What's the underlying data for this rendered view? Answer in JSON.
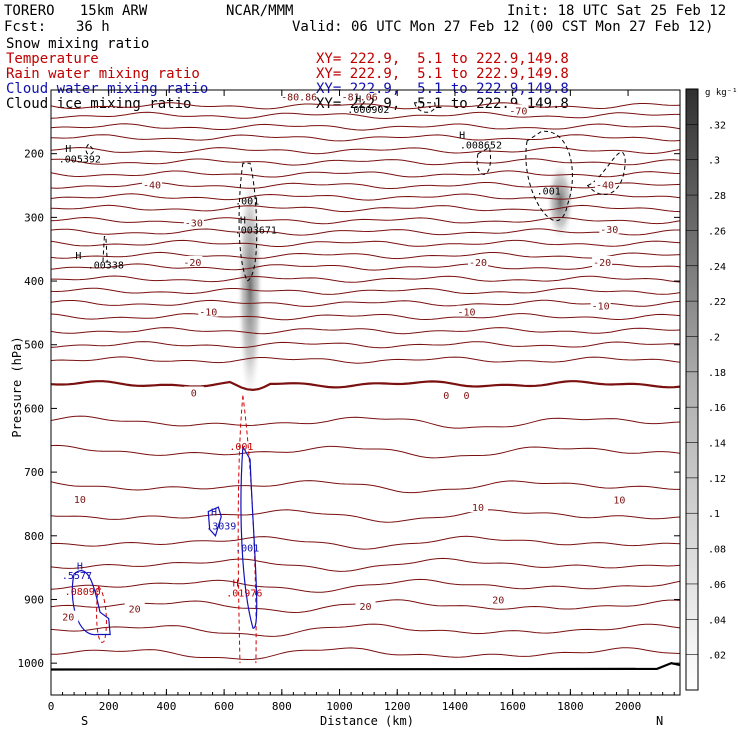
{
  "header": {
    "model": "TORERO   15km ARW",
    "center": "NCAR/MMM",
    "init": "Init: 18 UTC Sat 25 Feb 12",
    "fcst_label": "Fcst:",
    "fcst_value": "36 h",
    "valid": "Valid: 06 UTC Mon 27 Feb 12 (00 CST Mon 27 Feb 12)"
  },
  "legend": [
    {
      "name": "Snow mixing ratio",
      "xy": "",
      "color": "#000000"
    },
    {
      "name": "Temperature",
      "xy": "XY= 222.9,  5.1 to 222.9,149.8",
      "color": "#c00000"
    },
    {
      "name": "Rain water mixing ratio",
      "xy": "XY= 222.9,  5.1 to 222.9,149.8",
      "color": "#c00000"
    },
    {
      "name": "Cloud water mixing ratio",
      "xy": "XY= 222.9,  5.1 to 222.9,149.8",
      "color": "#1010b0"
    },
    {
      "name": "Cloud ice mixing ratio",
      "xy": "XY= 222.9,  5.1 to 222.9,149.8",
      "color": "#000000"
    }
  ],
  "chart_data": {
    "type": "contour-cross-section",
    "xlabel": "Distance (km)",
    "ylabel": "Pressure (hPa)",
    "xlim": [
      0,
      2180
    ],
    "ylim": [
      1050,
      100
    ],
    "x_ticks": [
      0,
      200,
      400,
      600,
      800,
      1000,
      1200,
      1400,
      1600,
      1800,
      2000
    ],
    "y_ticks": [
      200,
      300,
      400,
      500,
      600,
      700,
      800,
      900,
      1000
    ],
    "x_end_labels": {
      "left": "S",
      "right": "N"
    },
    "colorbar": {
      "unit": "g kg⁻¹",
      "ticks": [
        ".02",
        ".04",
        ".06",
        ".08",
        ".1",
        ".12",
        ".14",
        ".16",
        ".18",
        ".2",
        ".22",
        ".24",
        ".26",
        ".28",
        ".3",
        ".32"
      ]
    },
    "temperature_labels": [
      {
        "text": "-80.86",
        "x": 860,
        "p": 110
      },
      {
        "text": "-81.06",
        "x": 1070,
        "p": 110
      },
      {
        "text": "-70",
        "x": 1620,
        "p": 132
      },
      {
        "text": "-40",
        "x": 350,
        "p": 248
      },
      {
        "text": "-40",
        "x": 1920,
        "p": 248
      },
      {
        "text": "-30",
        "x": 495,
        "p": 308
      },
      {
        "text": "-30",
        "x": 1935,
        "p": 318
      },
      {
        "text": "-20",
        "x": 490,
        "p": 370
      },
      {
        "text": "-20",
        "x": 1480,
        "p": 370
      },
      {
        "text": "-20",
        "x": 1910,
        "p": 370
      },
      {
        "text": "-10",
        "x": 545,
        "p": 448
      },
      {
        "text": "-10",
        "x": 1440,
        "p": 448
      },
      {
        "text": "-10",
        "x": 1905,
        "p": 438
      },
      {
        "text": "0",
        "x": 495,
        "p": 575
      },
      {
        "text": "0",
        "x": 1370,
        "p": 579
      },
      {
        "text": "0",
        "x": 1440,
        "p": 579
      },
      {
        "text": "10",
        "x": 100,
        "p": 742
      },
      {
        "text": "10",
        "x": 1480,
        "p": 755
      },
      {
        "text": "10",
        "x": 1970,
        "p": 743
      },
      {
        "text": "20",
        "x": 60,
        "p": 927
      },
      {
        "text": "20",
        "x": 290,
        "p": 914
      },
      {
        "text": "20",
        "x": 1090,
        "p": 910
      },
      {
        "text": "20",
        "x": 1550,
        "p": 900
      }
    ],
    "isotherm_levels_p": [
      125,
      140,
      158,
      175,
      195,
      213,
      232,
      250,
      268,
      286,
      305,
      323,
      341,
      360,
      378,
      397,
      416,
      435,
      456,
      478,
      500,
      524,
      562,
      622,
      668,
      722,
      768,
      810,
      845,
      878,
      910,
      948,
      985
    ],
    "max_labels": [
      {
        "text": "H",
        "x": 60,
        "p": 197,
        "color": "#000000"
      },
      {
        "text": ".005392",
        "x": 100,
        "p": 214,
        "color": "#000000"
      },
      {
        "text": "H",
        "x": 1425,
        "p": 176,
        "color": "#000000"
      },
      {
        "text": ".008652",
        "x": 1490,
        "p": 192,
        "color": "#000000"
      },
      {
        "text": "H",
        "x": 1065,
        "p": 120,
        "color": "#000000"
      },
      {
        "text": ".000902",
        "x": 1100,
        "p": 136,
        "color": "#000000"
      },
      {
        "text": ".001",
        "x": 680,
        "p": 280,
        "color": "#000000"
      },
      {
        "text": "H",
        "x": 665,
        "p": 310,
        "color": "#000000"
      },
      {
        "text": ".003671",
        "x": 710,
        "p": 325,
        "color": "#000000"
      },
      {
        "text": ".001",
        "x": 1725,
        "p": 264,
        "color": "#000000"
      },
      {
        "text": "H",
        "x": 95,
        "p": 365,
        "color": "#000000"
      },
      {
        "text": ".00338",
        "x": 190,
        "p": 380,
        "color": "#000000"
      },
      {
        "text": ".001",
        "x": 660,
        "p": 665,
        "color": "#c00000"
      },
      {
        "text": "H",
        "x": 565,
        "p": 768,
        "color": "#1010b0"
      },
      {
        "text": ".3039",
        "x": 590,
        "p": 790,
        "color": "#1010b0"
      },
      {
        "text": ".001",
        "x": 680,
        "p": 825,
        "color": "#1010b0"
      },
      {
        "text": "H",
        "x": 100,
        "p": 853,
        "color": "#1010b0"
      },
      {
        "text": ".5577",
        "x": 90,
        "p": 868,
        "color": "#1010b0"
      },
      {
        "text": ".08090",
        "x": 110,
        "p": 893,
        "color": "#c00000"
      },
      {
        "text": "H",
        "x": 640,
        "p": 880,
        "color": "#c00000"
      },
      {
        "text": ".01976",
        "x": 670,
        "p": 895,
        "color": "#c00000"
      }
    ]
  }
}
